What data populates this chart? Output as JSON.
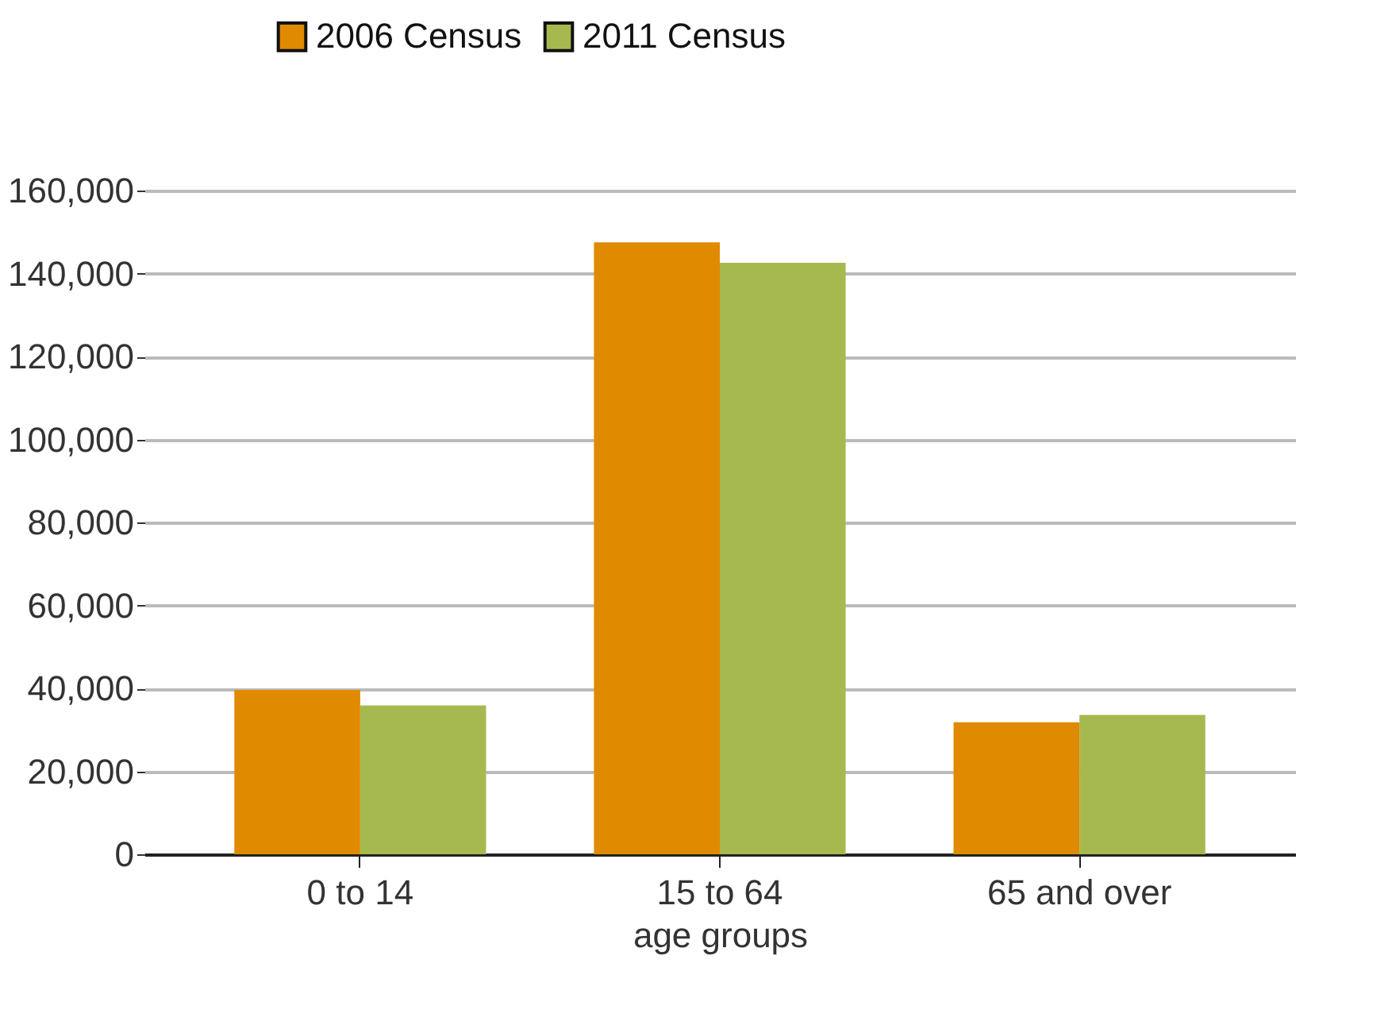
{
  "chart_data": {
    "type": "bar",
    "xlabel": "age groups",
    "categories": [
      "0 to 14",
      "15 to 64",
      "65 and over"
    ],
    "series": [
      {
        "name": "2006 Census",
        "color": "#e08a00",
        "values": [
          39600,
          147500,
          31800
        ]
      },
      {
        "name": "2011 Census",
        "color": "#a6b94f",
        "values": [
          35900,
          142600,
          33600
        ]
      }
    ],
    "ylim": [
      0,
      160000
    ],
    "yticks": [
      {
        "value": 0,
        "label": "0"
      },
      {
        "value": 20000,
        "label": "20,000"
      },
      {
        "value": 40000,
        "label": "40,000"
      },
      {
        "value": 60000,
        "label": "60,000"
      },
      {
        "value": 80000,
        "label": "80,000"
      },
      {
        "value": 100000,
        "label": "100,000"
      },
      {
        "value": 120000,
        "label": "120,000"
      },
      {
        "value": 140000,
        "label": "140,000"
      },
      {
        "value": 160000,
        "label": "160,000"
      }
    ],
    "grid": "y",
    "legend": "top"
  }
}
